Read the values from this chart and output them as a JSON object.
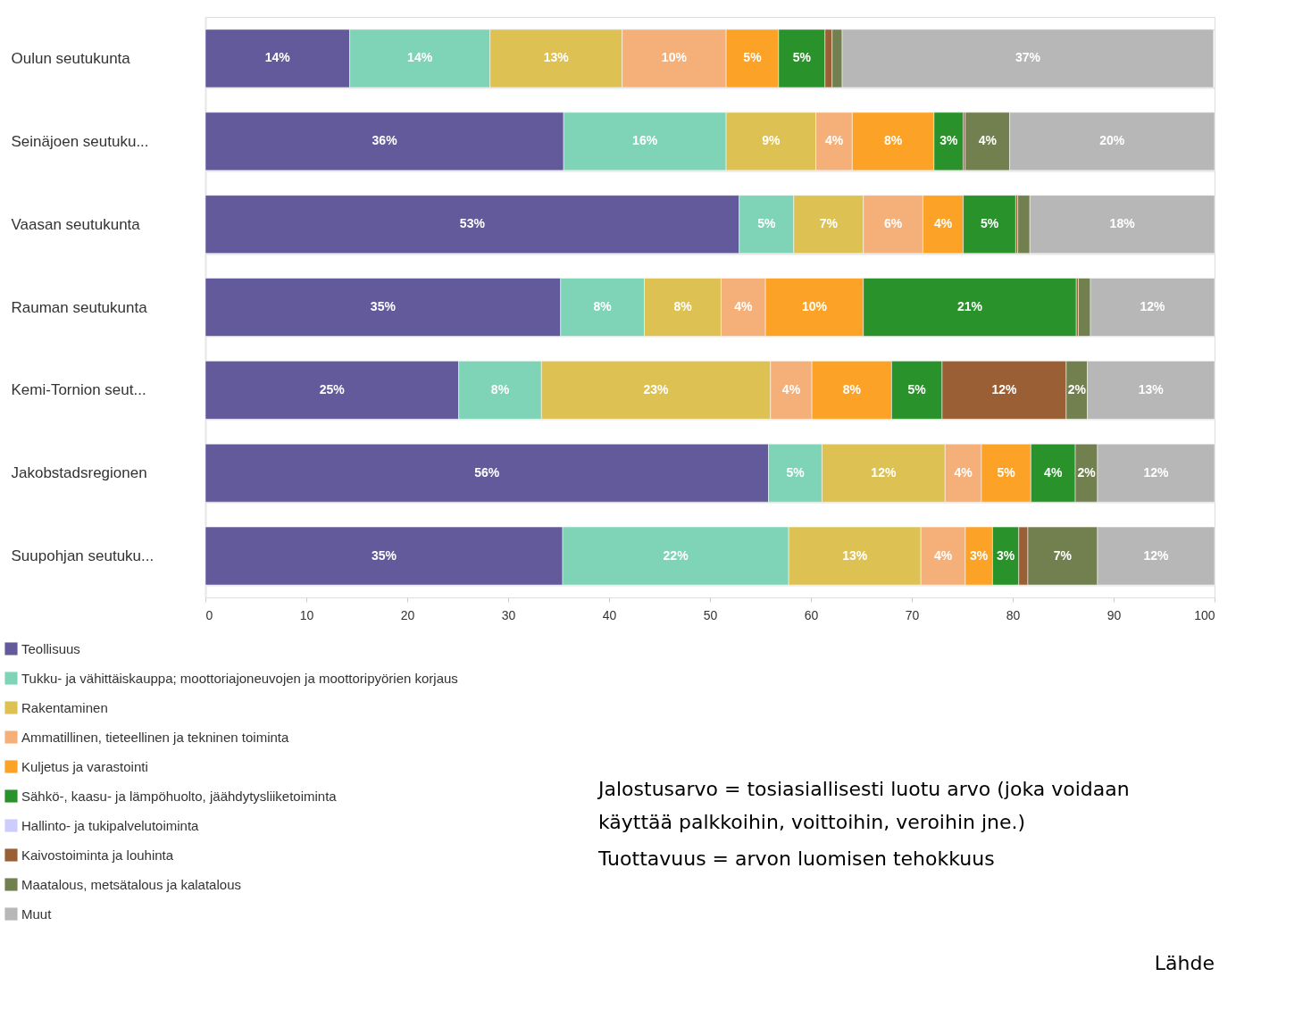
{
  "chart_data": {
    "type": "bar",
    "orientation": "horizontal",
    "stacked": true,
    "categories": [
      "Oulun seutukunta",
      "Seinäjoen seutuku...",
      "Vaasan seutukunta",
      "Rauman seutukunta",
      "Kemi-Tornion seut...",
      "Jakobstadsregionen",
      "Suupohjan seutuku..."
    ],
    "xlim": [
      0,
      100
    ],
    "xticks": [
      0,
      10,
      20,
      30,
      40,
      50,
      60,
      70,
      80,
      90,
      100
    ],
    "grid": "y",
    "legend": "bottom left",
    "series": [
      {
        "name": "Teollisuus",
        "color": "#635a9c",
        "values": [
          14.3,
          35.5,
          52.9,
          35.2,
          25.1,
          55.8,
          35.4
        ],
        "value_labels": [
          "14%",
          "36%",
          "53%",
          "35%",
          "25%",
          "56%",
          "35%"
        ]
      },
      {
        "name": "Tukku- ja vähittäiskauppa; moottoriajoneuvojen ja moottoripyörien korjaus",
        "color": "#7fd3b6",
        "values": [
          13.9,
          16.1,
          5.4,
          8.3,
          8.2,
          5.3,
          22.4
        ],
        "value_labels": [
          "14%",
          "16%",
          "5%",
          "8%",
          "8%",
          "5%",
          "22%"
        ]
      },
      {
        "name": "Rakentaminen",
        "color": "#ddc253",
        "values": [
          13.1,
          8.9,
          6.9,
          7.6,
          22.7,
          12.2,
          13.1
        ],
        "value_labels": [
          "13%",
          "9%",
          "7%",
          "8%",
          "23%",
          "12%",
          "13%"
        ]
      },
      {
        "name": "Ammatillinen, tieteellinen ja tekninen toiminta",
        "color": "#f5b07a",
        "values": [
          10.3,
          3.6,
          5.9,
          4.4,
          4.1,
          3.6,
          4.4
        ],
        "value_labels": [
          "10%",
          "4%",
          "6%",
          "4%",
          "4%",
          "4%",
          "4%"
        ]
      },
      {
        "name": "Kuljetus ja varastointi",
        "color": "#fca327",
        "values": [
          5.2,
          8.1,
          4.0,
          9.7,
          7.9,
          4.9,
          2.7
        ],
        "value_labels": [
          "5%",
          "8%",
          "4%",
          "10%",
          "8%",
          "5%",
          "3%"
        ]
      },
      {
        "name": "Sähkö-, kaasu- ja lämpöhuolto, jäähdytysliiketoiminta",
        "color": "#29922a",
        "values": [
          4.6,
          2.9,
          5.2,
          21.1,
          5.0,
          4.4,
          2.6
        ],
        "value_labels": [
          "5%",
          "3%",
          "5%",
          "21%",
          "5%",
          "4%",
          "3%"
        ]
      },
      {
        "name": "Hallinto- ja tukipalvelutoiminta",
        "color": "#ccccff",
        "values": [
          null,
          null,
          null,
          null,
          null,
          null,
          null
        ]
      },
      {
        "name": "Kaivostoiminta ja louhinta",
        "color": "#9b5f36",
        "values": [
          0.7,
          0.2,
          0.2,
          0.2,
          12.3,
          null,
          0.9
        ],
        "value_labels": [
          null,
          null,
          null,
          null,
          "12%",
          null,
          null
        ]
      },
      {
        "name": "Maatalous, metsätalous ja kalatalous",
        "color": "#728050",
        "values": [
          1.0,
          4.4,
          1.2,
          1.2,
          2.1,
          2.2,
          6.9
        ],
        "value_labels": [
          null,
          "4%",
          null,
          null,
          "2%",
          "2%",
          "7%"
        ]
      },
      {
        "name": "Muut",
        "color": "#b7b7b7",
        "values": [
          36.8,
          20.3,
          18.3,
          12.3,
          12.6,
          11.6,
          11.6
        ],
        "value_labels": [
          "37%",
          "20%",
          "18%",
          "12%",
          "13%",
          "12%",
          "12%"
        ]
      }
    ],
    "annotations": [
      "Jalostusarvo = tosiasiallisesti luotu arvo (joka voidaan käyttää palkkoihin, voittoihin, veroihin jne.)",
      "Tuottavuus = arvon luomisen tehokkuus",
      "Lähde"
    ]
  }
}
